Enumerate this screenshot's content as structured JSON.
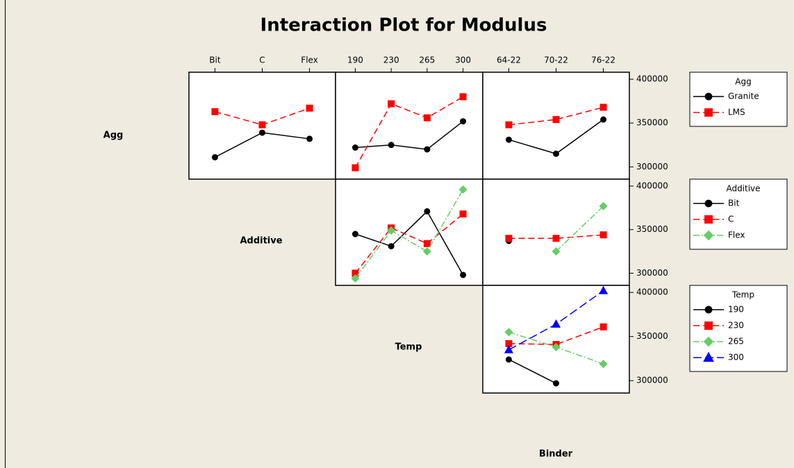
{
  "chart_data": {
    "type": "interaction_matrix",
    "title": "Interaction Plot for Modulus",
    "factors": [
      "Agg",
      "Additive",
      "Temp",
      "Binder"
    ],
    "columns": [
      {
        "categories": [
          "Bit",
          "C",
          "Flex"
        ]
      },
      {
        "categories": [
          "190",
          "230",
          "265",
          "300"
        ]
      },
      {
        "categories": [
          "64-22",
          "70-22",
          "76-22"
        ]
      }
    ],
    "rows": [
      {
        "ylim": [
          286000,
          408000
        ],
        "yticks": [
          300000,
          350000,
          400000
        ],
        "series": [
          {
            "name": "Granite",
            "color": "#000000",
            "marker": "circle",
            "dash": "solid",
            "panels": [
              [
                311000,
                339000,
                332000
              ],
              [
                322000,
                325000,
                320000,
                352000
              ],
              [
                331000,
                315000,
                354000
              ]
            ]
          },
          {
            "name": "LMS",
            "color": "#ff0000",
            "marker": "square",
            "dash": "dashed",
            "panels": [
              [
                363000,
                348000,
                367000
              ],
              [
                299000,
                372000,
                356000,
                380000
              ],
              [
                348000,
                354000,
                368000
              ]
            ]
          }
        ]
      },
      {
        "ylim": [
          286000,
          408000
        ],
        "yticks": [
          300000,
          350000,
          400000
        ],
        "series": [
          {
            "name": "Bit",
            "color": "#000000",
            "marker": "circle",
            "dash": "solid",
            "panels": [
              [
                345000,
                331000,
                371000,
                298000
              ],
              [
                337000,
                null,
                null
              ]
            ]
          },
          {
            "name": "C",
            "color": "#ff0000",
            "marker": "square",
            "dash": "dashed",
            "panels": [
              [
                300000,
                352000,
                334000,
                368000
              ],
              [
                340000,
                340000,
                344000
              ]
            ]
          },
          {
            "name": "Flex",
            "color": "#66cc66",
            "marker": "diamond",
            "dash": "dashdot",
            "panels": [
              [
                294000,
                349000,
                325000,
                396000
              ],
              [
                null,
                325000,
                377000
              ]
            ]
          }
        ]
      },
      {
        "ylim": [
          286000,
          408000
        ],
        "yticks": [
          300000,
          350000,
          400000
        ],
        "series": [
          {
            "name": "190",
            "color": "#000000",
            "marker": "circle",
            "dash": "solid",
            "panels": [
              [
                324000,
                297000,
                null
              ]
            ]
          },
          {
            "name": "230",
            "color": "#ff0000",
            "marker": "square",
            "dash": "dashed",
            "panels": [
              [
                342000,
                341000,
                361000
              ]
            ]
          },
          {
            "name": "265",
            "color": "#66cc66",
            "marker": "diamond",
            "dash": "dashdot",
            "panels": [
              [
                355000,
                338000,
                319000
              ]
            ]
          },
          {
            "name": "300",
            "color": "#0000ff",
            "marker": "triangle",
            "dash": "longdash",
            "panels": [
              [
                335000,
                364000,
                402000
              ]
            ]
          }
        ]
      }
    ]
  }
}
